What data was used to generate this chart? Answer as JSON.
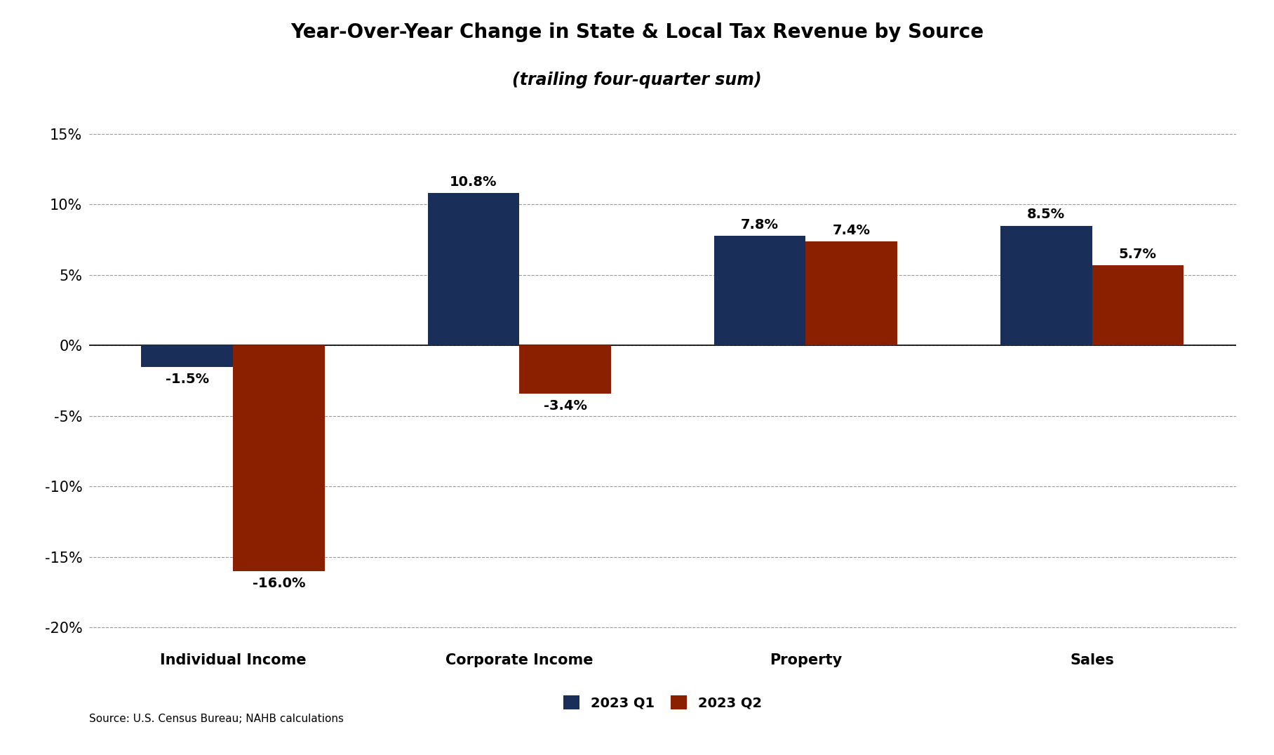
{
  "title_line1": "Year-Over-Year Change in State & Local Tax Revenue by Source",
  "title_line2": "(trailing four-quarter sum)",
  "categories": [
    "Individual Income",
    "Corporate Income",
    "Property",
    "Sales"
  ],
  "q1_values": [
    -1.5,
    10.8,
    7.8,
    8.5
  ],
  "q2_values": [
    -16.0,
    -3.4,
    7.4,
    5.7
  ],
  "q1_color": "#1a2e5a",
  "q2_color": "#8b2000",
  "ylim": [
    -21,
    17
  ],
  "yticks": [
    -20,
    -15,
    -10,
    -5,
    0,
    5,
    10,
    15
  ],
  "bar_width": 0.32,
  "legend_labels": [
    "2023 Q1",
    "2023 Q2"
  ],
  "source_text": "Source: U.S. Census Bureau; NAHB calculations",
  "background_color": "#ffffff",
  "tick_label_fontsize": 15,
  "title_fontsize": 20,
  "subtitle_fontsize": 17,
  "annotation_fontsize": 14,
  "legend_fontsize": 14,
  "source_fontsize": 11
}
